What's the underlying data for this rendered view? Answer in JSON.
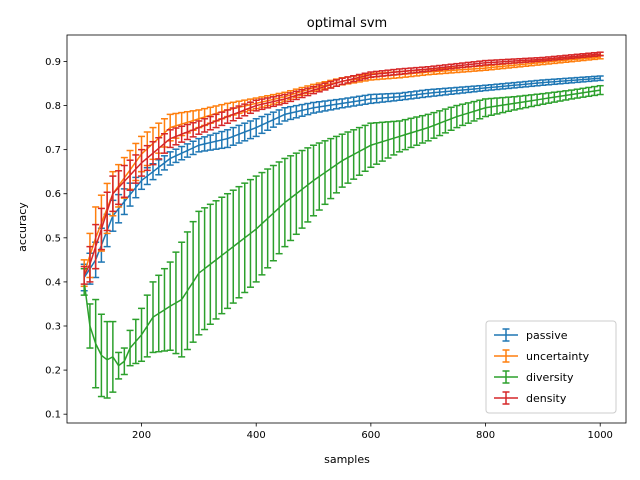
{
  "chart_data": {
    "type": "line",
    "title": "optimal svm",
    "xlabel": "samples",
    "ylabel": "accuracy",
    "xlim": [
      70,
      1045
    ],
    "ylim": [
      0.08,
      0.96
    ],
    "xticks": [
      200,
      400,
      600,
      800,
      1000
    ],
    "xtick_labels": [
      "200",
      "400",
      "600",
      "800",
      "1000"
    ],
    "yticks": [
      0.1,
      0.2,
      0.3,
      0.4,
      0.5,
      0.6,
      0.7,
      0.8,
      0.9
    ],
    "ytick_labels": [
      "0.1",
      "0.2",
      "0.3",
      "0.4",
      "0.5",
      "0.6",
      "0.7",
      "0.8",
      "0.9"
    ],
    "legend_position": "lower-right",
    "grid": false,
    "x_range": [
      100,
      1000,
      10
    ],
    "series": [
      {
        "name": "passive",
        "color": "#1f77b4",
        "key_x": [
          100,
          120,
          150,
          200,
          250,
          300,
          350,
          400,
          450,
          500,
          550,
          600,
          650,
          700,
          800,
          900,
          1000
        ],
        "key_y": [
          0.41,
          0.45,
          0.55,
          0.63,
          0.68,
          0.71,
          0.725,
          0.75,
          0.78,
          0.795,
          0.805,
          0.815,
          0.82,
          0.828,
          0.84,
          0.852,
          0.862
        ],
        "key_err": [
          0.03,
          0.04,
          0.035,
          0.02,
          0.015,
          0.015,
          0.02,
          0.02,
          0.015,
          0.012,
          0.01,
          0.01,
          0.008,
          0.008,
          0.006,
          0.006,
          0.005
        ]
      },
      {
        "name": "uncertainty",
        "color": "#ff7f0e",
        "key_x": [
          100,
          120,
          150,
          200,
          250,
          300,
          350,
          400,
          450,
          500,
          550,
          600,
          650,
          700,
          800,
          900,
          1000
        ],
        "key_y": [
          0.42,
          0.5,
          0.6,
          0.69,
          0.75,
          0.77,
          0.79,
          0.805,
          0.82,
          0.84,
          0.855,
          0.865,
          0.87,
          0.876,
          0.885,
          0.898,
          0.91
        ],
        "key_err": [
          0.03,
          0.07,
          0.05,
          0.04,
          0.03,
          0.02,
          0.015,
          0.012,
          0.01,
          0.008,
          0.008,
          0.007,
          0.007,
          0.006,
          0.005,
          0.005,
          0.004
        ]
      },
      {
        "name": "diversity",
        "color": "#2ca02c",
        "key_x": [
          100,
          110,
          120,
          135,
          150,
          160,
          170,
          180,
          200,
          220,
          250,
          270,
          300,
          350,
          400,
          450,
          500,
          550,
          600,
          650,
          700,
          750,
          800,
          850,
          900,
          950,
          1000
        ],
        "key_y": [
          0.4,
          0.3,
          0.26,
          0.22,
          0.23,
          0.21,
          0.22,
          0.25,
          0.28,
          0.32,
          0.345,
          0.36,
          0.42,
          0.47,
          0.52,
          0.58,
          0.63,
          0.675,
          0.71,
          0.73,
          0.75,
          0.775,
          0.795,
          0.805,
          0.815,
          0.825,
          0.835
        ],
        "key_err": [
          0.03,
          0.05,
          0.1,
          0.09,
          0.08,
          0.03,
          0.03,
          0.04,
          0.06,
          0.08,
          0.1,
          0.13,
          0.14,
          0.13,
          0.12,
          0.1,
          0.08,
          0.06,
          0.05,
          0.035,
          0.03,
          0.025,
          0.02,
          0.015,
          0.012,
          0.01,
          0.01
        ]
      },
      {
        "name": "density",
        "color": "#d62728",
        "key_x": [
          100,
          110,
          120,
          150,
          200,
          250,
          300,
          350,
          400,
          450,
          500,
          550,
          600,
          650,
          700,
          800,
          900,
          1000
        ],
        "key_y": [
          0.415,
          0.44,
          0.48,
          0.6,
          0.67,
          0.725,
          0.75,
          0.775,
          0.8,
          0.815,
          0.835,
          0.855,
          0.87,
          0.877,
          0.883,
          0.897,
          0.905,
          0.917
        ],
        "key_err": [
          0.02,
          0.04,
          0.05,
          0.04,
          0.03,
          0.02,
          0.015,
          0.015,
          0.012,
          0.01,
          0.008,
          0.007,
          0.006,
          0.006,
          0.005,
          0.005,
          0.004,
          0.004
        ]
      }
    ]
  }
}
